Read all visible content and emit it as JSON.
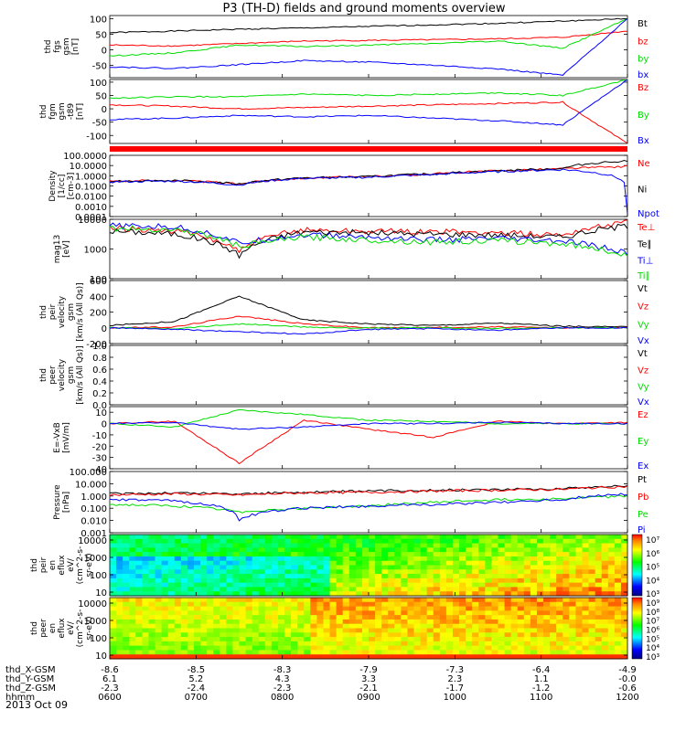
{
  "title": "P3 (TH-D) fields and ground moments overview",
  "date": "2013 Oct 09",
  "time_axis": {
    "row_labels": [
      "thd_X-GSM",
      "thd_Y-GSM",
      "thd_Z-GSM",
      "hhmm"
    ],
    "columns": [
      [
        "-8.6",
        "6.1",
        "-2.3",
        "0600"
      ],
      [
        "-8.5",
        "5.2",
        "-2.4",
        "0700"
      ],
      [
        "-8.3",
        "4.3",
        "-2.3",
        "0800"
      ],
      [
        "-7.9",
        "3.3",
        "-2.1",
        "0900"
      ],
      [
        "-7.3",
        "2.3",
        "-1.7",
        "1000"
      ],
      [
        "-6.4",
        "1.1",
        "-1.2",
        "1100"
      ],
      [
        "-4.9",
        "-0.0",
        "-0.6",
        "1200"
      ]
    ]
  },
  "colors": {
    "black": "#000000",
    "red": "#ff0000",
    "green": "#00dd00",
    "blue": "#0000ff"
  },
  "chart_data": [
    {
      "type": "line",
      "ylabel": [
        "thd",
        "fgs",
        "gsm",
        "[nT]"
      ],
      "yticks": [
        "100",
        "50",
        "0",
        "-50"
      ],
      "ylim": [
        -90,
        110
      ],
      "series": [
        {
          "name": "Bt",
          "color": "black",
          "values": [
            55,
            60,
            66,
            70,
            75,
            80,
            85,
            92,
            100
          ]
        },
        {
          "name": "bz",
          "color": "red",
          "values": [
            15,
            12,
            20,
            28,
            30,
            32,
            35,
            40,
            60
          ]
        },
        {
          "name": "by",
          "color": "green",
          "values": [
            -20,
            -10,
            15,
            10,
            15,
            20,
            28,
            5,
            100
          ]
        },
        {
          "name": "bx",
          "color": "blue",
          "values": [
            -55,
            -60,
            -48,
            -35,
            -40,
            -50,
            -62,
            -82,
            100
          ]
        }
      ]
    },
    {
      "type": "line",
      "ylabel": [
        "thd",
        "fgm",
        "gsm",
        "-t89",
        "[nT]"
      ],
      "yticks": [
        "100",
        "50",
        "0",
        "-50",
        "-100"
      ],
      "ylim": [
        -130,
        110
      ],
      "series": [
        {
          "name": "Bz",
          "color": "red",
          "values": [
            15,
            10,
            0,
            5,
            10,
            15,
            20,
            25,
            -130
          ]
        },
        {
          "name": "By",
          "color": "green",
          "values": [
            40,
            45,
            45,
            55,
            50,
            55,
            60,
            50,
            110
          ]
        },
        {
          "name": "Bx",
          "color": "blue",
          "values": [
            -40,
            -35,
            -25,
            -30,
            -25,
            -35,
            -45,
            -60,
            110
          ]
        }
      ]
    },
    {
      "type": "line",
      "ylabel": [
        "Density",
        "[1/cc]",
        "[cm-3]"
      ],
      "yticks": [
        "100.0000",
        "10.0000",
        "1.0000",
        "0.1000",
        "0.0100",
        "0.0010",
        "0.0001"
      ],
      "ylog": true,
      "ylim": [
        0.0001,
        100
      ],
      "series": [
        {
          "name": "Ne",
          "color": "red",
          "values": [
            0.3,
            0.35,
            0.15,
            0.6,
            0.8,
            1.5,
            3,
            5,
            8
          ]
        },
        {
          "name": "Ni",
          "color": "black",
          "values": [
            0.3,
            0.35,
            0.15,
            0.6,
            0.8,
            1.5,
            3,
            5,
            30
          ]
        },
        {
          "name": "Npot",
          "color": "blue",
          "values": [
            0.25,
            0.3,
            0.12,
            0.55,
            0.7,
            1.3,
            2.5,
            4,
            0.0002
          ]
        }
      ]
    },
    {
      "type": "line",
      "ylabel": [
        "mag13",
        "[eV]"
      ],
      "yticks": [
        "10000",
        "1000",
        "100"
      ],
      "ylog": true,
      "ylim": [
        100,
        10000
      ],
      "series": [
        {
          "name": "Te⊥",
          "color": "red",
          "values": [
            5000,
            4000,
            800,
            4500,
            4000,
            3800,
            3500,
            3000,
            8000
          ]
        },
        {
          "name": "Te∥",
          "color": "black",
          "values": [
            4000,
            3200,
            600,
            3800,
            3500,
            3200,
            3000,
            2500,
            6000
          ]
        },
        {
          "name": "Ti⊥",
          "color": "blue",
          "values": [
            6000,
            5500,
            1500,
            3000,
            2500,
            2000,
            2200,
            1800,
            700
          ]
        },
        {
          "name": "Ti∥",
          "color": "green",
          "values": [
            5000,
            4500,
            1200,
            2500,
            2000,
            1700,
            1900,
            1500,
            600
          ]
        }
      ]
    },
    {
      "type": "line",
      "ylabel": [
        "thd",
        "peir",
        "velocity",
        "gsm",
        "[km/s (All Qs)]"
      ],
      "yticks": [
        "600",
        "400",
        "200",
        "0",
        "-200"
      ],
      "ylim": [
        -200,
        600
      ],
      "series": [
        {
          "name": "Vt",
          "color": "black",
          "values": [
            30,
            80,
            400,
            100,
            50,
            30,
            60,
            20,
            10
          ]
        },
        {
          "name": "Vz",
          "color": "red",
          "values": [
            0,
            10,
            150,
            50,
            0,
            5,
            10,
            0,
            0
          ]
        },
        {
          "name": "Vy",
          "color": "green",
          "values": [
            0,
            -10,
            50,
            10,
            -5,
            0,
            -10,
            0,
            0
          ]
        },
        {
          "name": "Vx",
          "color": "blue",
          "values": [
            0,
            -20,
            -50,
            -80,
            -20,
            -10,
            -30,
            0,
            0
          ]
        }
      ]
    },
    {
      "type": "line",
      "ylabel": [
        "thd",
        "peer",
        "velocity",
        "gsm",
        "[km/s (All Qs)]"
      ],
      "yticks": [
        "1.0",
        "0.8",
        "0.6",
        "0.4",
        "0.2",
        "0.0"
      ],
      "ylim": [
        0,
        1
      ],
      "series": [
        {
          "name": "Vt",
          "color": "black",
          "values": []
        },
        {
          "name": "Vz",
          "color": "red",
          "values": []
        },
        {
          "name": "Vy",
          "color": "green",
          "values": []
        },
        {
          "name": "Vx",
          "color": "blue",
          "values": []
        }
      ]
    },
    {
      "type": "line",
      "ylabel": [
        "E=-VxB",
        "[mV/m]"
      ],
      "yticks": [
        "10",
        "0",
        "-10",
        "-20",
        "-30",
        "-40"
      ],
      "ylim": [
        -40,
        15
      ],
      "series": [
        {
          "name": "Ez",
          "color": "red",
          "values": [
            0,
            2,
            -35,
            3,
            -5,
            -12,
            2,
            0,
            1
          ]
        },
        {
          "name": "Ey",
          "color": "green",
          "values": [
            0,
            -3,
            12,
            8,
            3,
            2,
            0,
            0,
            0
          ]
        },
        {
          "name": "Ex",
          "color": "blue",
          "values": [
            0,
            1,
            -5,
            -3,
            0,
            0,
            1,
            0,
            0
          ]
        }
      ]
    },
    {
      "type": "line",
      "ylabel": [
        "Pressure",
        "[nPa]"
      ],
      "yticks": [
        "100.000",
        "10.000",
        "1.000",
        "0.100",
        "0.010",
        "0.001"
      ],
      "ylog": true,
      "ylim": [
        0.001,
        100
      ],
      "series": [
        {
          "name": "Pt",
          "color": "black",
          "values": [
            1.5,
            1.8,
            1.5,
            2,
            2.5,
            3,
            3.5,
            4,
            7
          ]
        },
        {
          "name": "Pb",
          "color": "red",
          "values": [
            1.2,
            1.5,
            1.2,
            1.8,
            2,
            2.5,
            3,
            3.5,
            6
          ]
        },
        {
          "name": "Pe",
          "color": "green",
          "values": [
            0.2,
            0.15,
            0.05,
            0.1,
            0.15,
            0.3,
            0.5,
            0.6,
            1
          ]
        },
        {
          "name": "Pi",
          "color": "blue",
          "values": [
            0.5,
            0.4,
            0.01,
            0.1,
            0.15,
            0.2,
            0.3,
            0.5,
            1.5
          ]
        }
      ]
    },
    {
      "type": "heatmap",
      "ylabel": [
        "thd",
        "peir",
        "en",
        "eflux",
        "eV/",
        "(cm^2-s-",
        "sr-eV)"
      ],
      "yticks": [
        "10000",
        "1000",
        "100",
        "10"
      ],
      "colorbar": [
        "10⁷",
        "10⁶",
        "10⁵",
        "10⁴",
        "10³"
      ]
    },
    {
      "type": "heatmap",
      "ylabel": [
        "thd",
        "peer",
        "en",
        "eflux",
        "eV/",
        "(cm^2-s-",
        "sr-eV)"
      ],
      "yticks": [
        "10000",
        "1000",
        "100",
        "10"
      ],
      "colorbar": [
        "10⁹",
        "10⁸",
        "10⁷",
        "10⁶",
        "10⁵",
        "10⁴",
        "10³"
      ]
    }
  ]
}
